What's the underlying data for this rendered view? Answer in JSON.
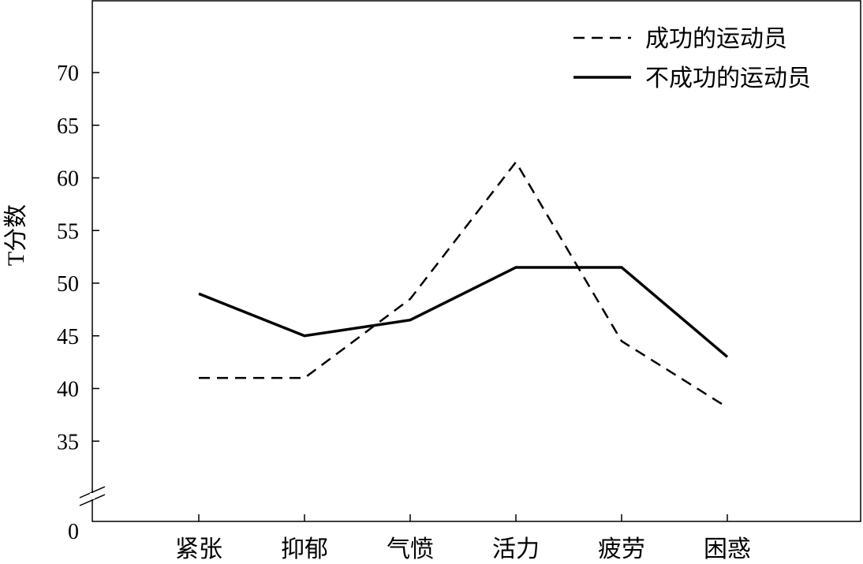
{
  "chart_data": {
    "type": "line",
    "title": "",
    "xlabel": "",
    "ylabel": "T分数",
    "categories": [
      "紧张",
      "抑郁",
      "气愤",
      "活力",
      "疲劳",
      "困惑"
    ],
    "y_ticks": [
      35,
      40,
      45,
      50,
      55,
      60,
      65,
      70
    ],
    "y_zero_label": "0",
    "axis_break": true,
    "ylim": [
      30,
      76
    ],
    "grid": false,
    "legend_position": "top-right",
    "series": [
      {
        "name": "成功的运动员",
        "style": "dashed",
        "color": "#000000",
        "values": [
          41,
          41,
          48.5,
          61.5,
          44.5,
          38.2
        ]
      },
      {
        "name": "不成功的运动员",
        "style": "solid",
        "color": "#000000",
        "values": [
          49,
          45,
          46.5,
          51.5,
          51.5,
          43
        ]
      }
    ]
  }
}
